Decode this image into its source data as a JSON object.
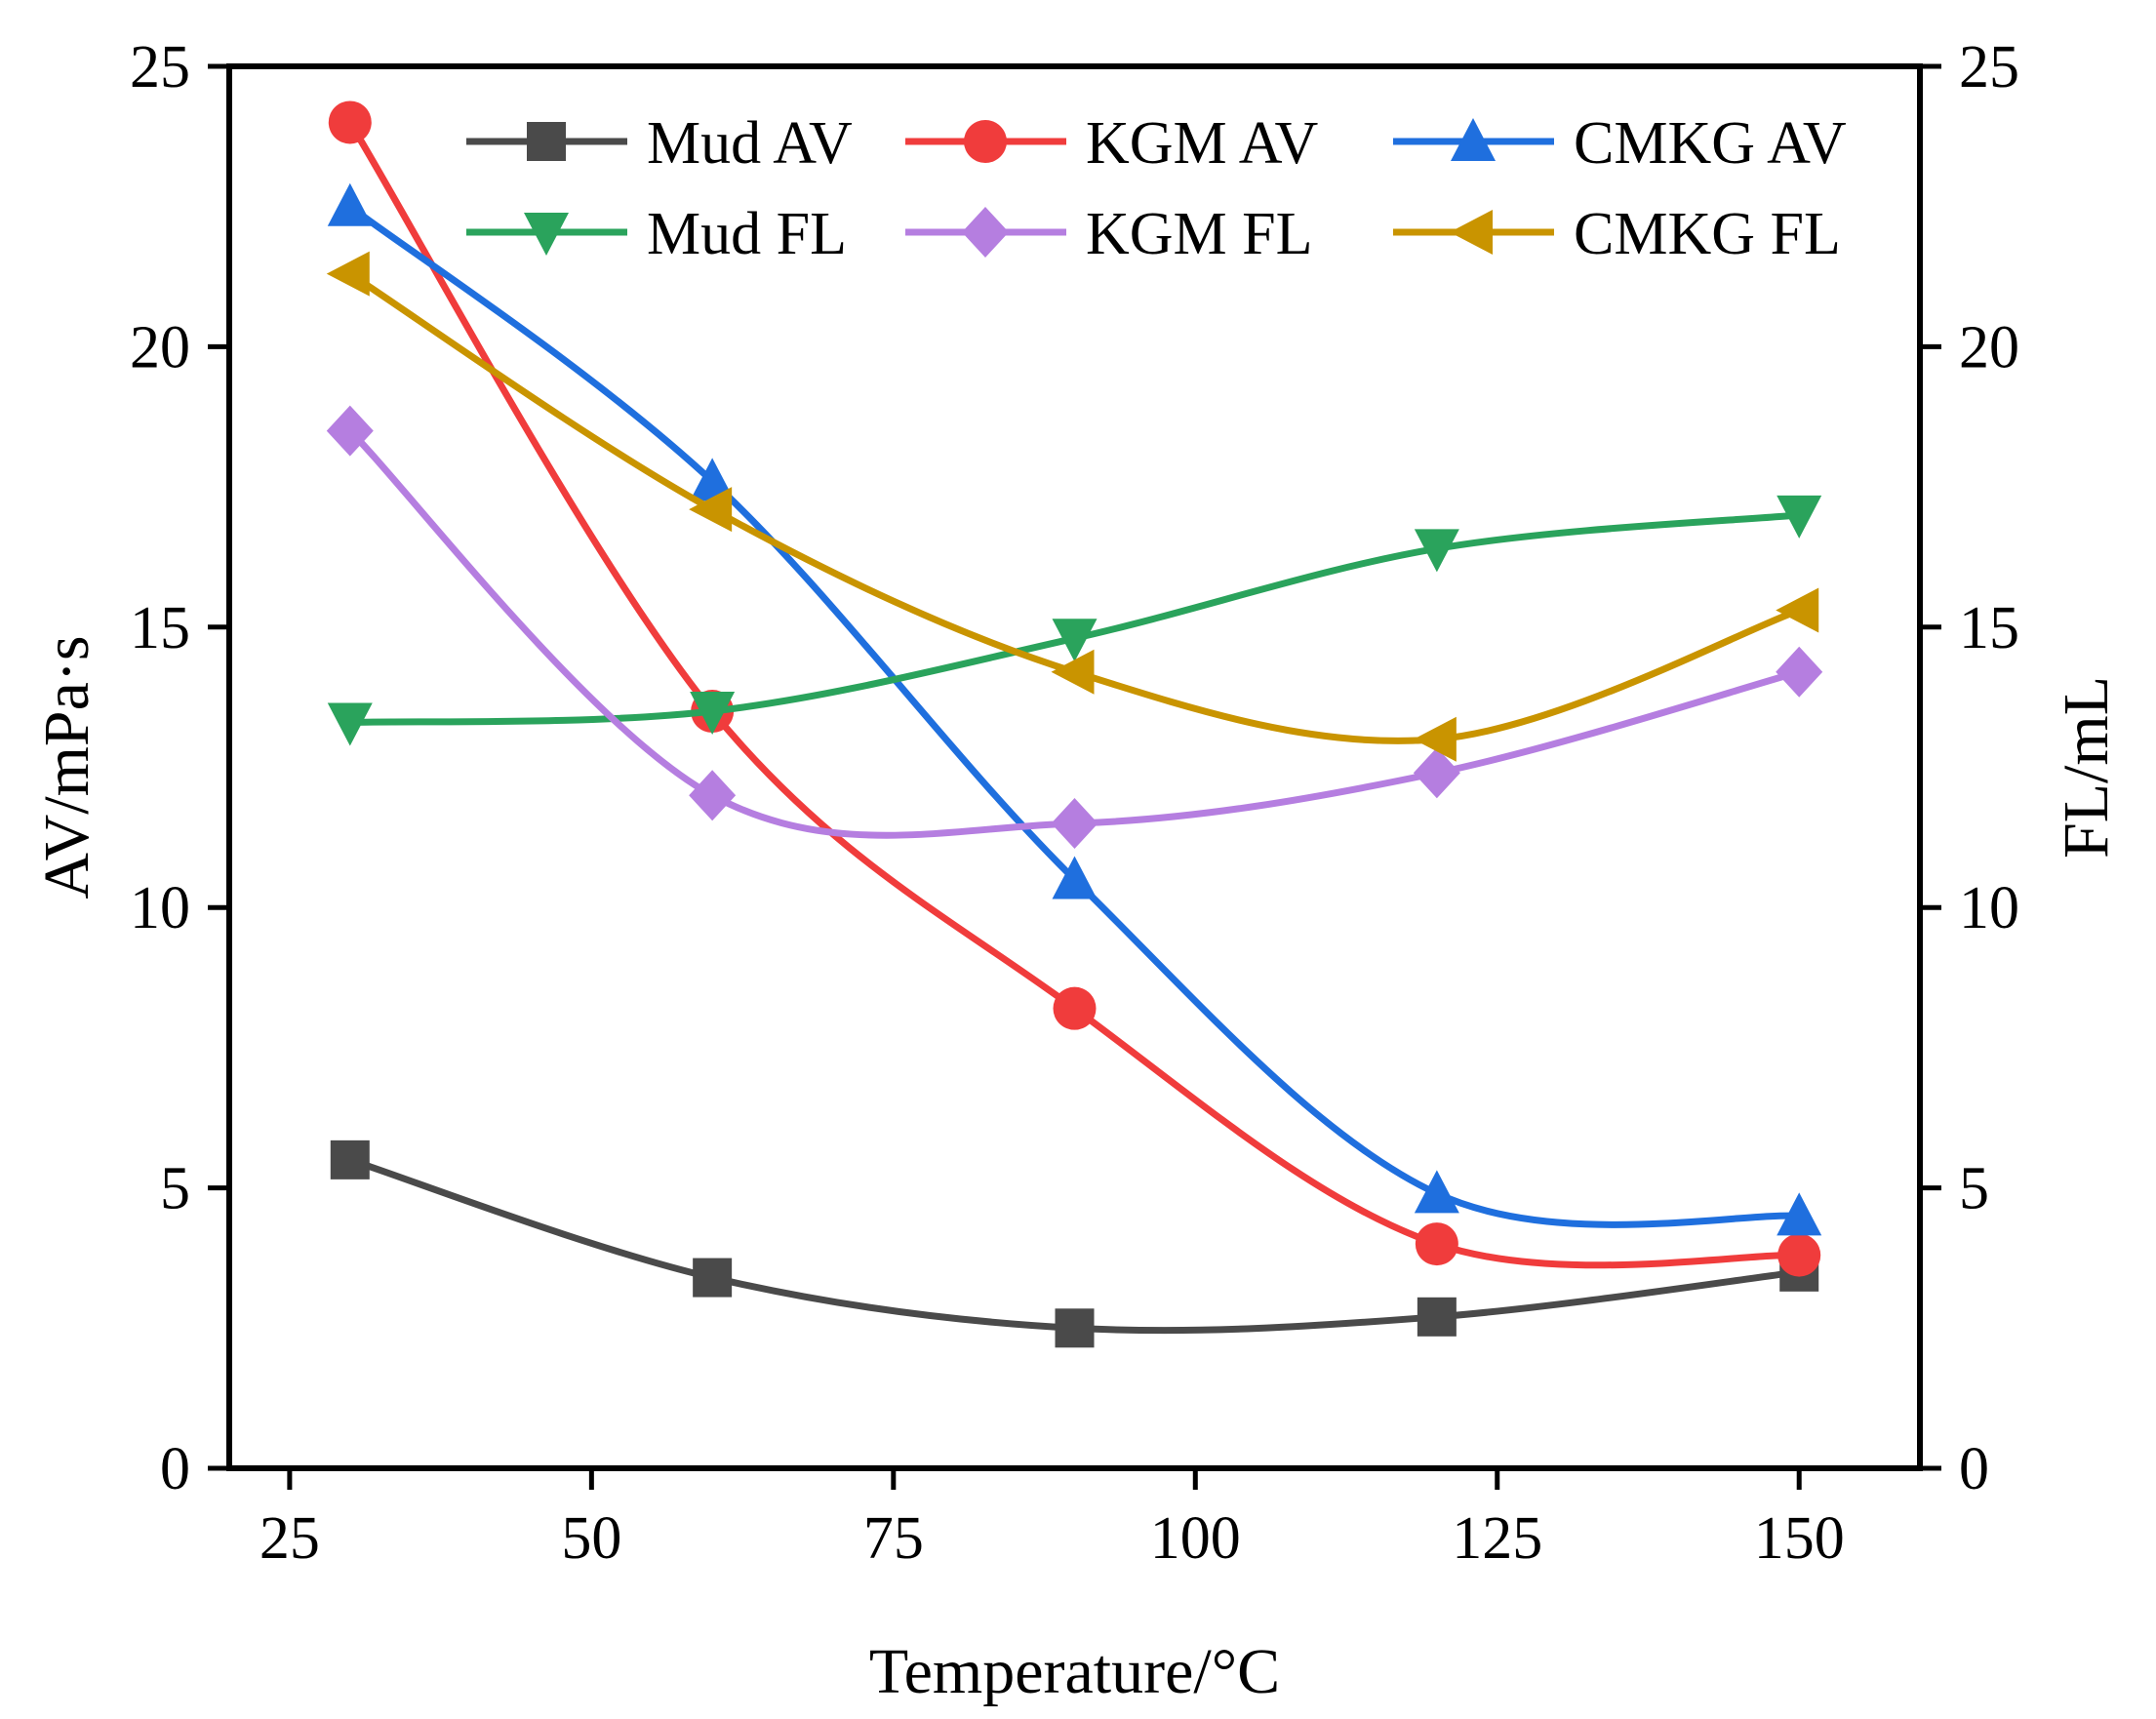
{
  "chart_data": {
    "type": "line",
    "title": "",
    "xlabel": "Temperature/°C",
    "ylabel": "AV/mPa·s",
    "y2label": "FL/mL",
    "xlim": [
      20,
      160
    ],
    "ylim": [
      0,
      25
    ],
    "y2lim": [
      0,
      25
    ],
    "xticks": [
      25,
      50,
      75,
      100,
      125,
      150
    ],
    "yticks": [
      0,
      5,
      10,
      15,
      20,
      25
    ],
    "y2ticks": [
      0,
      5,
      10,
      15,
      20,
      25
    ],
    "legend_position": "top-right",
    "x": [
      30,
      60,
      90,
      120,
      150
    ],
    "series": [
      {
        "name": "Mud AV",
        "axis": "left",
        "color": "#4a4a4a",
        "marker": "square",
        "values": [
          5.5,
          3.4,
          2.5,
          2.7,
          3.5
        ]
      },
      {
        "name": "KGM AV",
        "axis": "left",
        "color": "#f03c3c",
        "marker": "circle",
        "values": [
          24.0,
          13.5,
          8.2,
          4.0,
          3.8
        ]
      },
      {
        "name": "CMKG AV",
        "axis": "left",
        "color": "#1f6fde",
        "marker": "triangle-up",
        "values": [
          22.5,
          17.6,
          10.5,
          4.9,
          4.5
        ]
      },
      {
        "name": "Mud FL",
        "axis": "right",
        "color": "#2aa35c",
        "marker": "triangle-down",
        "values": [
          13.3,
          13.5,
          14.8,
          16.4,
          17.0
        ]
      },
      {
        "name": "KGM FL",
        "axis": "right",
        "color": "#b57ee0",
        "marker": "diamond",
        "values": [
          18.5,
          12.0,
          11.5,
          12.4,
          14.2
        ]
      },
      {
        "name": "CMKG FL",
        "axis": "right",
        "color": "#c99400",
        "marker": "triangle-left",
        "values": [
          21.3,
          17.1,
          14.2,
          13.0,
          15.3
        ]
      }
    ]
  }
}
